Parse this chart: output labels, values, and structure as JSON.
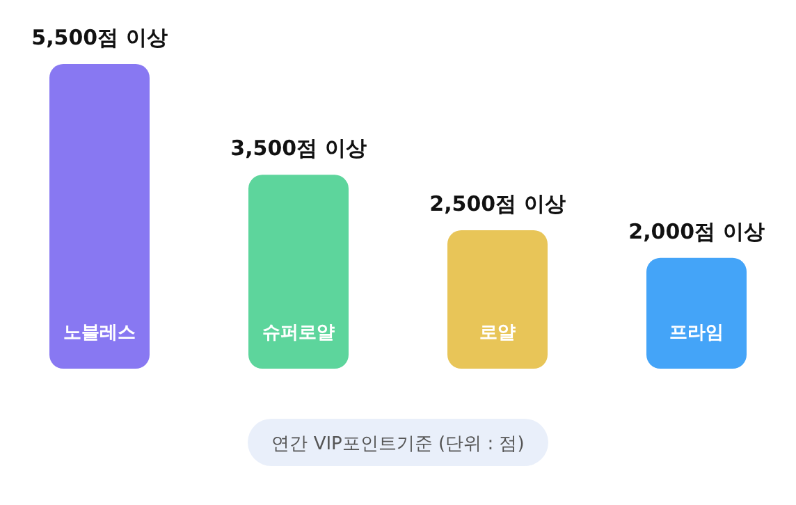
{
  "chart_data": {
    "type": "bar",
    "categories": [
      "노블레스",
      "슈퍼로얄",
      "로얄",
      "프라임"
    ],
    "values": [
      5500,
      3500,
      2500,
      2000
    ],
    "colors": [
      "#8878f2",
      "#5dd59c",
      "#e8c558",
      "#44a4f8"
    ],
    "value_labels": [
      "5,500점 이상",
      "3,500점 이상",
      "2,500점 이상",
      "2,000점 이상"
    ],
    "annotations": [
      "연간 VIP포인트기준  (단위 : 점)"
    ]
  }
}
